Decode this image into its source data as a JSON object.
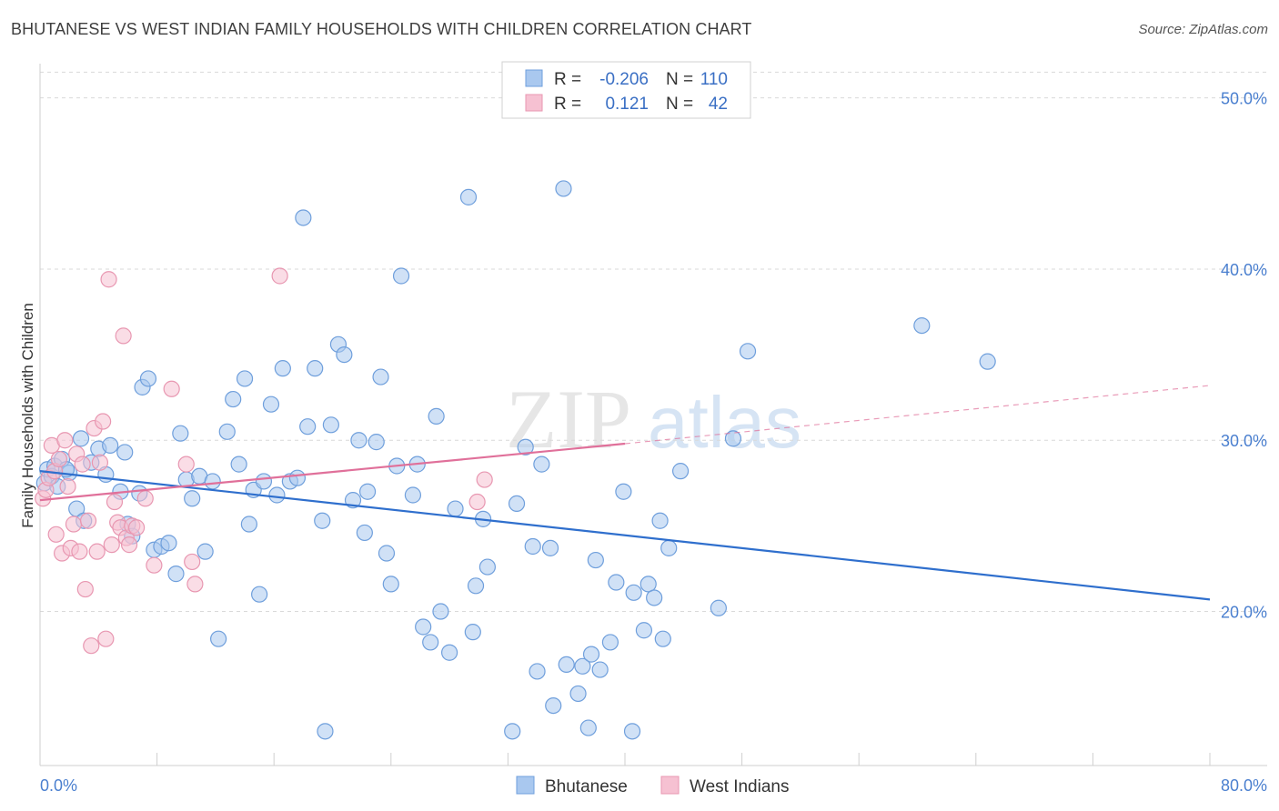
{
  "header": {
    "title": "BHUTANESE VS WEST INDIAN FAMILY HOUSEHOLDS WITH CHILDREN CORRELATION CHART",
    "source": "Source: ZipAtlas.com"
  },
  "watermark": {
    "zip": "ZIP",
    "atlas": "atlas"
  },
  "legend": {
    "rows": [
      {
        "r_label": "R =",
        "r_value": "-0.206",
        "n_label": "N =",
        "n_value": "110"
      },
      {
        "r_label": "R =",
        "r_value": "0.121",
        "n_label": "N =",
        "n_value": "42"
      }
    ]
  },
  "colors": {
    "blue_fill": "#a9c8ef",
    "blue_stroke": "#6f9fdc",
    "blue_line": "#2f6fcd",
    "pink_fill": "#f6c1d2",
    "pink_stroke": "#e897b1",
    "pink_line": "#e0709a",
    "axis_label": "#4a7fcf",
    "grid": "#d9d9d9"
  },
  "chart_data": {
    "type": "scatter",
    "title": "BHUTANESE VS WEST INDIAN FAMILY HOUSEHOLDS WITH CHILDREN CORRELATION CHART",
    "xlabel": "",
    "ylabel": "Family Households with Children",
    "xlim": [
      0,
      80
    ],
    "ylim": [
      11,
      52
    ],
    "x_tick_labels": [
      "0.0%",
      "80.0%"
    ],
    "y_ticks": [
      20,
      30,
      40,
      50
    ],
    "y_tick_labels": [
      "20.0%",
      "30.0%",
      "40.0%",
      "50.0%"
    ],
    "grid": true,
    "legend_position": "top-center",
    "series": [
      {
        "name": "Bhutanese",
        "r": -0.206,
        "n": 110,
        "trend": {
          "x": [
            0,
            80
          ],
          "y": [
            28.2,
            20.7
          ],
          "style": "solid"
        },
        "points": [
          [
            0.3,
            27.5
          ],
          [
            0.5,
            28.3
          ],
          [
            0.8,
            27.9
          ],
          [
            1.0,
            28.5
          ],
          [
            1.2,
            27.3
          ],
          [
            1.5,
            28.9
          ],
          [
            2.0,
            28.1
          ],
          [
            2.5,
            26.0
          ],
          [
            3.0,
            25.3
          ],
          [
            2.8,
            30.1
          ],
          [
            3.5,
            28.7
          ],
          [
            4.0,
            29.5
          ],
          [
            4.5,
            28.0
          ],
          [
            4.8,
            29.7
          ],
          [
            5.5,
            27.0
          ],
          [
            5.8,
            29.3
          ],
          [
            6.0,
            25.1
          ],
          [
            6.3,
            24.4
          ],
          [
            7.0,
            33.1
          ],
          [
            7.4,
            33.6
          ],
          [
            7.8,
            23.6
          ],
          [
            8.3,
            23.8
          ],
          [
            8.8,
            24.0
          ],
          [
            9.3,
            22.2
          ],
          [
            9.6,
            30.4
          ],
          [
            10.0,
            27.7
          ],
          [
            10.4,
            26.6
          ],
          [
            10.9,
            27.9
          ],
          [
            11.3,
            23.5
          ],
          [
            11.8,
            27.6
          ],
          [
            12.2,
            18.4
          ],
          [
            12.8,
            30.5
          ],
          [
            13.2,
            32.4
          ],
          [
            13.6,
            28.6
          ],
          [
            14.0,
            33.6
          ],
          [
            14.3,
            25.1
          ],
          [
            14.6,
            27.1
          ],
          [
            15.0,
            21.0
          ],
          [
            15.3,
            27.6
          ],
          [
            15.8,
            32.1
          ],
          [
            16.2,
            26.8
          ],
          [
            16.6,
            34.2
          ],
          [
            17.1,
            27.6
          ],
          [
            17.6,
            27.8
          ],
          [
            18.0,
            43.0
          ],
          [
            18.3,
            30.8
          ],
          [
            18.8,
            34.2
          ],
          [
            19.3,
            25.3
          ],
          [
            19.5,
            13.0
          ],
          [
            19.9,
            30.9
          ],
          [
            20.4,
            35.6
          ],
          [
            20.8,
            35.0
          ],
          [
            21.4,
            26.5
          ],
          [
            21.8,
            30.0
          ],
          [
            22.2,
            24.6
          ],
          [
            22.4,
            27.0
          ],
          [
            23.0,
            29.9
          ],
          [
            23.3,
            33.7
          ],
          [
            23.7,
            23.4
          ],
          [
            24.0,
            21.6
          ],
          [
            24.4,
            28.5
          ],
          [
            24.7,
            39.6
          ],
          [
            25.5,
            26.8
          ],
          [
            25.8,
            28.6
          ],
          [
            26.2,
            19.1
          ],
          [
            26.7,
            18.2
          ],
          [
            27.1,
            31.4
          ],
          [
            27.4,
            20.0
          ],
          [
            28.0,
            17.6
          ],
          [
            28.4,
            26.0
          ],
          [
            29.3,
            44.2
          ],
          [
            29.6,
            18.8
          ],
          [
            29.8,
            21.5
          ],
          [
            30.3,
            25.4
          ],
          [
            30.6,
            22.6
          ],
          [
            32.3,
            13.0
          ],
          [
            32.6,
            26.3
          ],
          [
            33.2,
            29.6
          ],
          [
            33.7,
            23.8
          ],
          [
            34.0,
            16.5
          ],
          [
            34.3,
            28.6
          ],
          [
            34.9,
            23.7
          ],
          [
            35.1,
            14.5
          ],
          [
            35.8,
            44.7
          ],
          [
            36.0,
            16.9
          ],
          [
            36.8,
            15.2
          ],
          [
            37.1,
            16.8
          ],
          [
            37.7,
            17.5
          ],
          [
            38.0,
            23.0
          ],
          [
            38.3,
            16.6
          ],
          [
            39.0,
            18.2
          ],
          [
            39.4,
            21.7
          ],
          [
            39.9,
            27.0
          ],
          [
            40.6,
            21.1
          ],
          [
            41.3,
            18.9
          ],
          [
            41.6,
            21.6
          ],
          [
            42.0,
            20.8
          ],
          [
            42.4,
            25.3
          ],
          [
            42.6,
            18.4
          ],
          [
            43.0,
            23.7
          ],
          [
            37.5,
            13.2
          ],
          [
            40.5,
            13.0
          ],
          [
            43.8,
            28.2
          ],
          [
            46.4,
            20.2
          ],
          [
            47.4,
            30.1
          ],
          [
            48.4,
            35.2
          ],
          [
            60.3,
            36.7
          ],
          [
            64.8,
            34.6
          ],
          [
            1.8,
            28.3
          ],
          [
            6.8,
            26.9
          ]
        ]
      },
      {
        "name": "West Indians",
        "r": 0.121,
        "n": 42,
        "trend": {
          "x": [
            0,
            40
          ],
          "y": [
            26.5,
            29.8
          ],
          "style": "solid",
          "extended": {
            "x": [
              40,
              80
            ],
            "y": [
              29.8,
              33.2
            ],
            "style": "dashed"
          }
        },
        "points": [
          [
            0.2,
            26.6
          ],
          [
            0.4,
            27.1
          ],
          [
            0.6,
            27.8
          ],
          [
            0.8,
            29.7
          ],
          [
            1.0,
            28.2
          ],
          [
            1.1,
            24.5
          ],
          [
            1.3,
            28.9
          ],
          [
            1.5,
            23.4
          ],
          [
            1.7,
            30.0
          ],
          [
            1.9,
            27.3
          ],
          [
            2.1,
            23.7
          ],
          [
            2.3,
            25.1
          ],
          [
            2.5,
            29.2
          ],
          [
            2.7,
            23.5
          ],
          [
            2.9,
            28.6
          ],
          [
            3.1,
            21.3
          ],
          [
            3.3,
            25.3
          ],
          [
            3.5,
            18.0
          ],
          [
            3.7,
            30.7
          ],
          [
            3.9,
            23.5
          ],
          [
            4.1,
            28.7
          ],
          [
            4.3,
            31.1
          ],
          [
            4.5,
            18.4
          ],
          [
            4.7,
            39.4
          ],
          [
            4.9,
            23.9
          ],
          [
            5.1,
            26.4
          ],
          [
            5.3,
            25.2
          ],
          [
            5.5,
            24.9
          ],
          [
            5.7,
            36.1
          ],
          [
            5.9,
            24.3
          ],
          [
            6.1,
            23.9
          ],
          [
            6.3,
            25.0
          ],
          [
            6.6,
            24.9
          ],
          [
            7.2,
            26.6
          ],
          [
            7.8,
            22.7
          ],
          [
            9.0,
            33.0
          ],
          [
            10.0,
            28.6
          ],
          [
            10.4,
            22.9
          ],
          [
            10.6,
            21.6
          ],
          [
            16.4,
            39.6
          ],
          [
            30.4,
            27.7
          ],
          [
            29.9,
            26.4
          ]
        ]
      }
    ]
  },
  "bottom_legend": {
    "items": [
      "Bhutanese",
      "West Indians"
    ]
  }
}
